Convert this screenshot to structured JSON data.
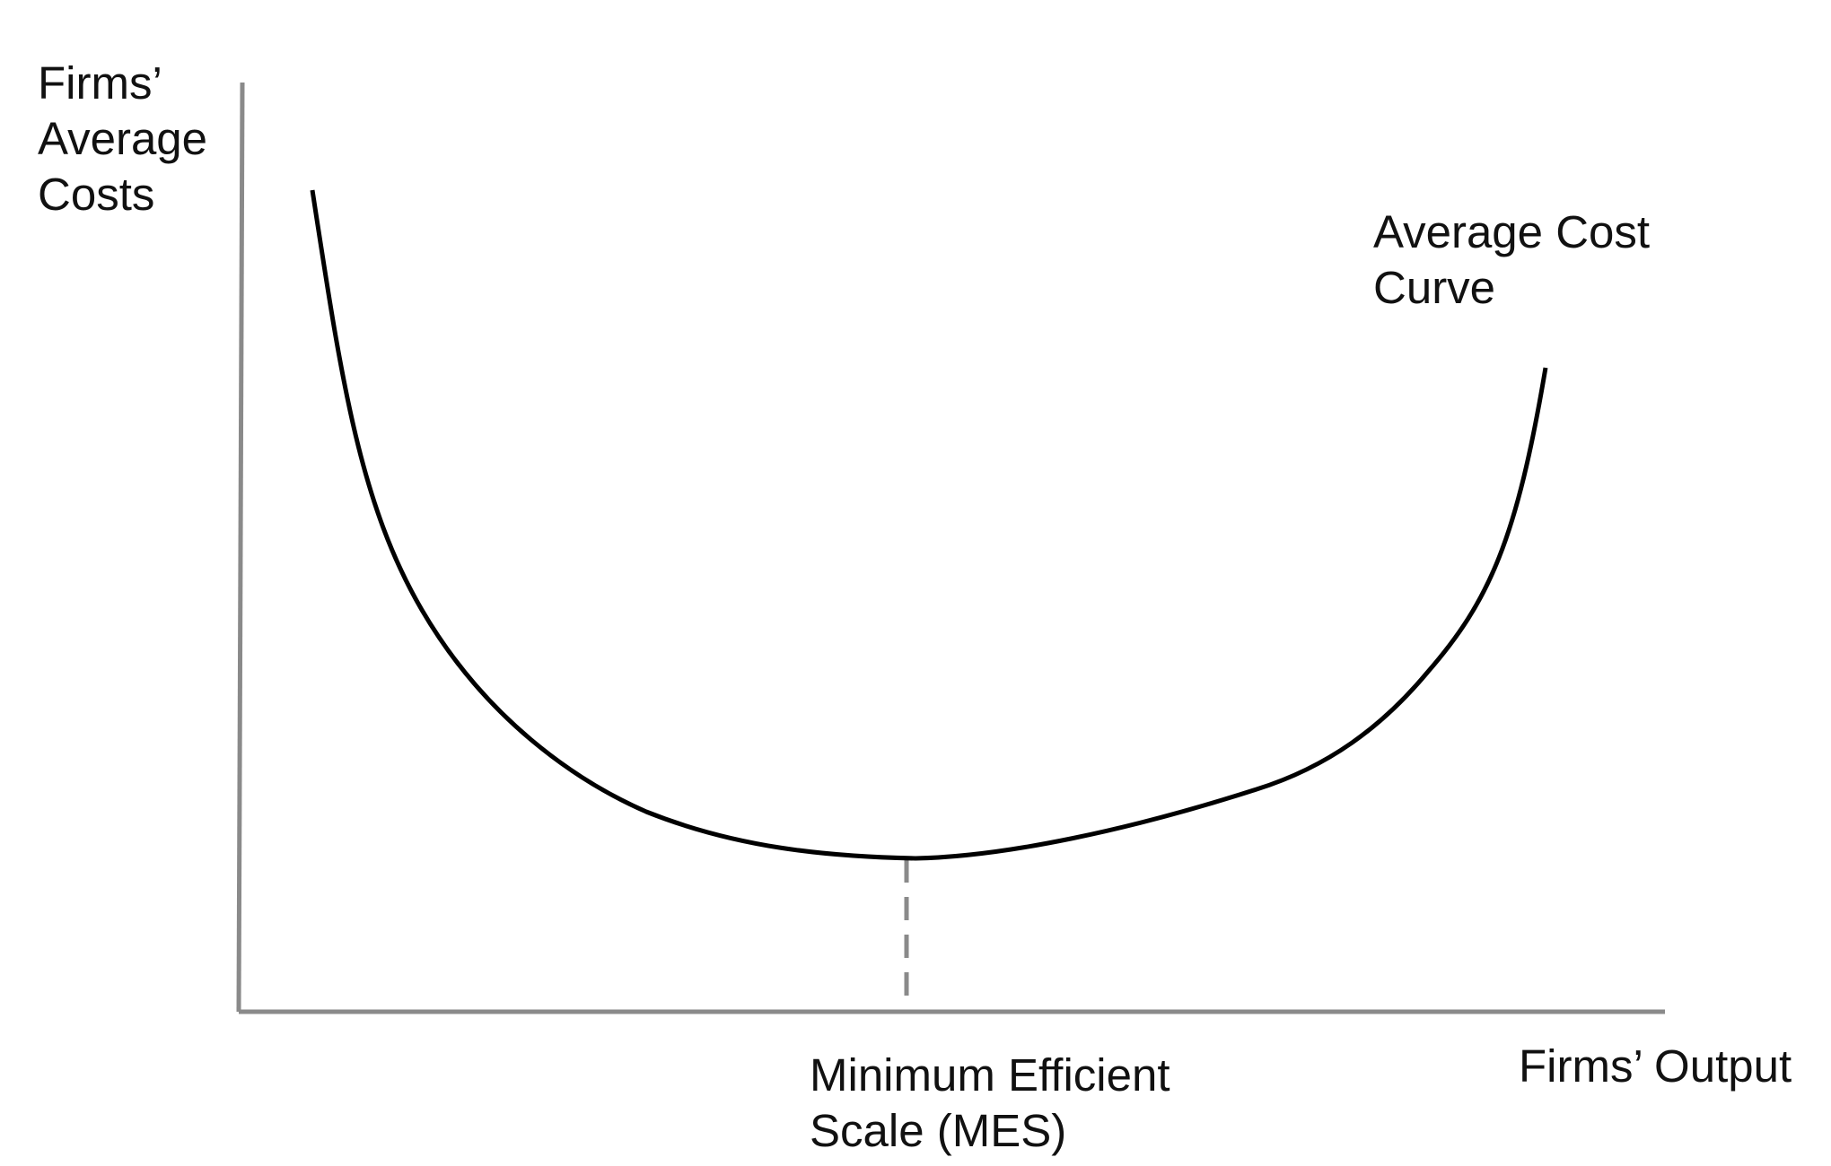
{
  "diagram": {
    "y_axis_label": [
      "Firms’",
      "Average",
      "Costs"
    ],
    "x_axis_label": "Firms’ Output",
    "curve_label": [
      "Average Cost",
      "Curve"
    ],
    "mes_label": [
      "Minimum Efficient",
      "Scale (MES)"
    ]
  },
  "colors": {
    "axis": "#8a8a8a",
    "curve": "#000000",
    "mes_line": "#8a8a8a",
    "text": "#111111"
  }
}
